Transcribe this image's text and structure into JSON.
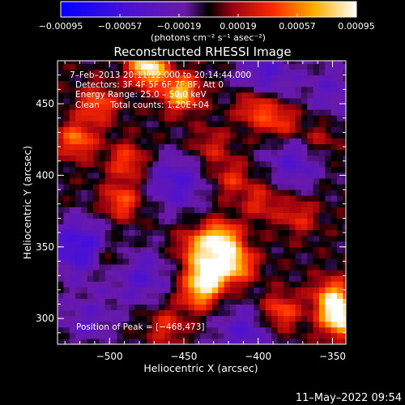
{
  "chart_data": {
    "type": "heatmap",
    "title": "Reconstructed RHESSI Image",
    "xlabel": "Heliocentric X (arcsec)",
    "ylabel": "Heliocentric Y (arcsec)",
    "xlim": [
      -535,
      -341
    ],
    "ylim": [
      282,
      480
    ],
    "x_ticks": [
      -500,
      -450,
      -400,
      -350
    ],
    "x_tick_labels": [
      "−500",
      "−450",
      "−400",
      "−350"
    ],
    "y_ticks": [
      300,
      350,
      400,
      450
    ],
    "y_tick_labels": [
      "300",
      "350",
      "400",
      "450"
    ],
    "colorbar": {
      "min": -0.00095,
      "max": 0.00095,
      "ticks": [
        -0.00095,
        -0.00057,
        -0.00019,
        0.00019,
        0.00057,
        0.00095
      ],
      "tick_labels": [
        "−0.00095",
        "−0.00057",
        "−0.00019",
        "0.00019",
        "0.00057",
        "0.00095"
      ],
      "units_label": "(photons cm⁻² s⁻¹ asec⁻²)"
    },
    "annotations": {
      "time_range": "7–Feb–2013 20:11:12.000 to 20:14:44.000",
      "detectors": "Detectors: 3F 4F 5F 6F 7F 8F, Att 0",
      "energy": "Energy Range: 25.0 – 50.0 keV",
      "clean": "Clean    Total counts: 1.20E+04",
      "peak": "Position of Peak = [−468,473]"
    },
    "bright_regions": [
      {
        "x": -474,
        "y": 476,
        "value": 0.00095
      },
      {
        "x": -452,
        "y": 458,
        "value": 0.00075
      },
      {
        "x": -508,
        "y": 450,
        "value": 0.0005
      },
      {
        "x": -522,
        "y": 425,
        "value": 0.00055
      },
      {
        "x": -488,
        "y": 410,
        "value": 0.00045
      },
      {
        "x": -492,
        "y": 382,
        "value": 0.0005
      },
      {
        "x": -402,
        "y": 448,
        "value": 0.0005
      },
      {
        "x": -385,
        "y": 438,
        "value": 0.00045
      },
      {
        "x": -432,
        "y": 420,
        "value": 0.0003
      },
      {
        "x": -418,
        "y": 398,
        "value": 0.00035
      },
      {
        "x": -398,
        "y": 382,
        "value": 0.00035
      },
      {
        "x": -360,
        "y": 425,
        "value": 0.0003
      },
      {
        "x": -442,
        "y": 350,
        "value": 0.0005
      },
      {
        "x": -425,
        "y": 355,
        "value": 0.00085
      },
      {
        "x": -415,
        "y": 338,
        "value": 0.0007
      },
      {
        "x": -433,
        "y": 332,
        "value": 0.0009
      },
      {
        "x": -440,
        "y": 318,
        "value": 0.0006
      },
      {
        "x": -500,
        "y": 342,
        "value": 0.0003
      },
      {
        "x": -462,
        "y": 295,
        "value": 0.00035
      },
      {
        "x": -373,
        "y": 372,
        "value": 0.00035
      },
      {
        "x": -350,
        "y": 315,
        "value": 0.0007
      },
      {
        "x": -345,
        "y": 300,
        "value": 0.0009
      },
      {
        "x": -385,
        "y": 305,
        "value": 0.0005
      }
    ],
    "dark_regions": [
      {
        "x": -520,
        "y": 350,
        "value": -0.0006
      },
      {
        "x": -455,
        "y": 395,
        "value": -0.00045
      },
      {
        "x": -375,
        "y": 410,
        "value": -0.0004
      },
      {
        "x": -395,
        "y": 470,
        "value": -0.0004
      },
      {
        "x": -350,
        "y": 460,
        "value": -0.0003
      },
      {
        "x": -410,
        "y": 290,
        "value": -0.0004
      },
      {
        "x": -515,
        "y": 300,
        "value": -0.0003
      },
      {
        "x": -480,
        "y": 330,
        "value": -0.0004
      }
    ]
  },
  "footer": {
    "timestamp": "11–May–2022 09:54"
  }
}
